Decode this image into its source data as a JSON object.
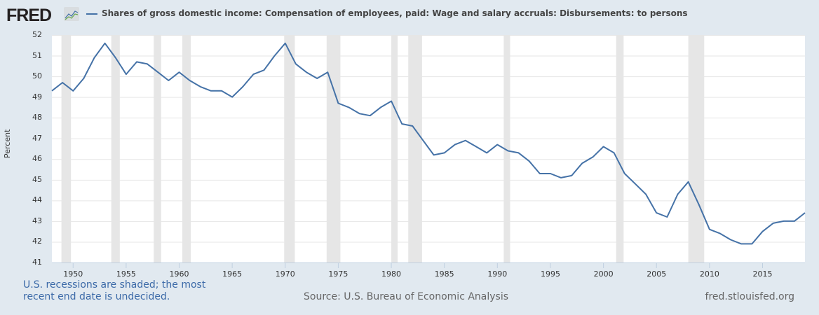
{
  "header": {
    "logo": "FRED",
    "logo_icon": "chart-icon",
    "title": "Shares of gross domestic income: Compensation of employees, paid: Wage and salary accruals: Disbursements: to persons"
  },
  "axis": {
    "ylabel": "Percent",
    "yticks": [
      "52",
      "51",
      "50",
      "49",
      "48",
      "47",
      "46",
      "45",
      "44",
      "43",
      "42",
      "41"
    ],
    "xticks": [
      "1950",
      "1955",
      "1960",
      "1965",
      "1970",
      "1975",
      "1980",
      "1985",
      "1990",
      "1995",
      "2000",
      "2005",
      "2010",
      "2015"
    ]
  },
  "footer": {
    "note_line1": "U.S. recessions are shaded; the most",
    "note_line2": "recent end date is undecided.",
    "source": "Source: U.S. Bureau of Economic Analysis",
    "site": "fred.stlouisfed.org"
  },
  "colors": {
    "line": "#4572a7",
    "recession": "#e6e6e6",
    "background": "#e1e9f0"
  },
  "chart_data": {
    "type": "line",
    "title": "Shares of gross domestic income: Compensation of employees, paid: Wage and salary accruals: Disbursements: to persons",
    "xlabel": "",
    "ylabel": "Percent",
    "ylim": [
      41,
      52
    ],
    "xlim": [
      1948,
      2019
    ],
    "grid": true,
    "legend_position": "top",
    "x": [
      1948,
      1949,
      1950,
      1951,
      1952,
      1953,
      1954,
      1955,
      1956,
      1957,
      1958,
      1959,
      1960,
      1961,
      1962,
      1963,
      1964,
      1965,
      1966,
      1967,
      1968,
      1969,
      1970,
      1971,
      1972,
      1973,
      1974,
      1975,
      1976,
      1977,
      1978,
      1979,
      1980,
      1981,
      1982,
      1983,
      1984,
      1985,
      1986,
      1987,
      1988,
      1989,
      1990,
      1991,
      1992,
      1993,
      1994,
      1995,
      1996,
      1997,
      1998,
      1999,
      2000,
      2001,
      2002,
      2003,
      2004,
      2005,
      2006,
      2007,
      2008,
      2009,
      2010,
      2011,
      2012,
      2013,
      2014,
      2015,
      2016,
      2017,
      2018,
      2019
    ],
    "series": [
      {
        "name": "Shares of gross domestic income: Compensation of employees, paid: Wage and salary accruals: Disbursements: to persons",
        "values": [
          49.3,
          49.7,
          49.3,
          49.9,
          50.9,
          51.6,
          50.9,
          50.1,
          50.7,
          50.6,
          50.2,
          49.8,
          50.2,
          49.8,
          49.5,
          49.3,
          49.3,
          49.0,
          49.5,
          50.1,
          50.3,
          51.0,
          51.6,
          50.6,
          50.2,
          49.9,
          50.2,
          48.7,
          48.5,
          48.2,
          48.1,
          48.5,
          48.8,
          47.7,
          47.6,
          46.9,
          46.2,
          46.3,
          46.7,
          46.9,
          46.6,
          46.3,
          46.7,
          46.4,
          46.3,
          45.9,
          45.3,
          45.3,
          45.1,
          45.2,
          45.8,
          46.1,
          46.6,
          46.3,
          45.3,
          44.8,
          44.3,
          43.4,
          43.2,
          44.3,
          44.9,
          43.8,
          42.6,
          42.4,
          42.1,
          41.9,
          41.9,
          42.5,
          42.9,
          43.0,
          43.0,
          43.4
        ]
      }
    ],
    "recessions": [
      [
        1948.9,
        1949.8
      ],
      [
        1953.6,
        1954.4
      ],
      [
        1957.6,
        1958.3
      ],
      [
        1960.3,
        1961.1
      ],
      [
        1969.9,
        1970.9
      ],
      [
        1973.9,
        1975.2
      ],
      [
        1980.0,
        1980.6
      ],
      [
        1981.6,
        1982.9
      ],
      [
        1990.6,
        1991.2
      ],
      [
        2001.2,
        2001.9
      ],
      [
        2008.0,
        2009.5
      ]
    ],
    "annotations": [
      "U.S. recessions are shaded; the most recent end date is undecided."
    ]
  }
}
